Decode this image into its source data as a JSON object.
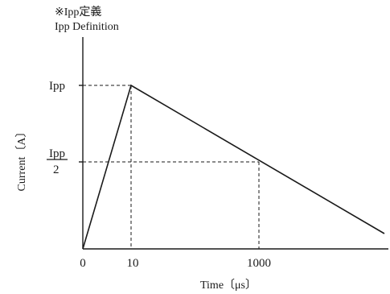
{
  "header": {
    "title_jp": "※Ipp定義",
    "title_en": "Ipp Definition"
  },
  "y_axis": {
    "label": "Current〔A〕",
    "tick_peak": "Ipp",
    "tick_half_numerator": "Ipp",
    "tick_half_denominator": "2"
  },
  "x_axis": {
    "label": "Time〔μs〕",
    "ticks": [
      "0",
      "10",
      "1000"
    ]
  }
}
